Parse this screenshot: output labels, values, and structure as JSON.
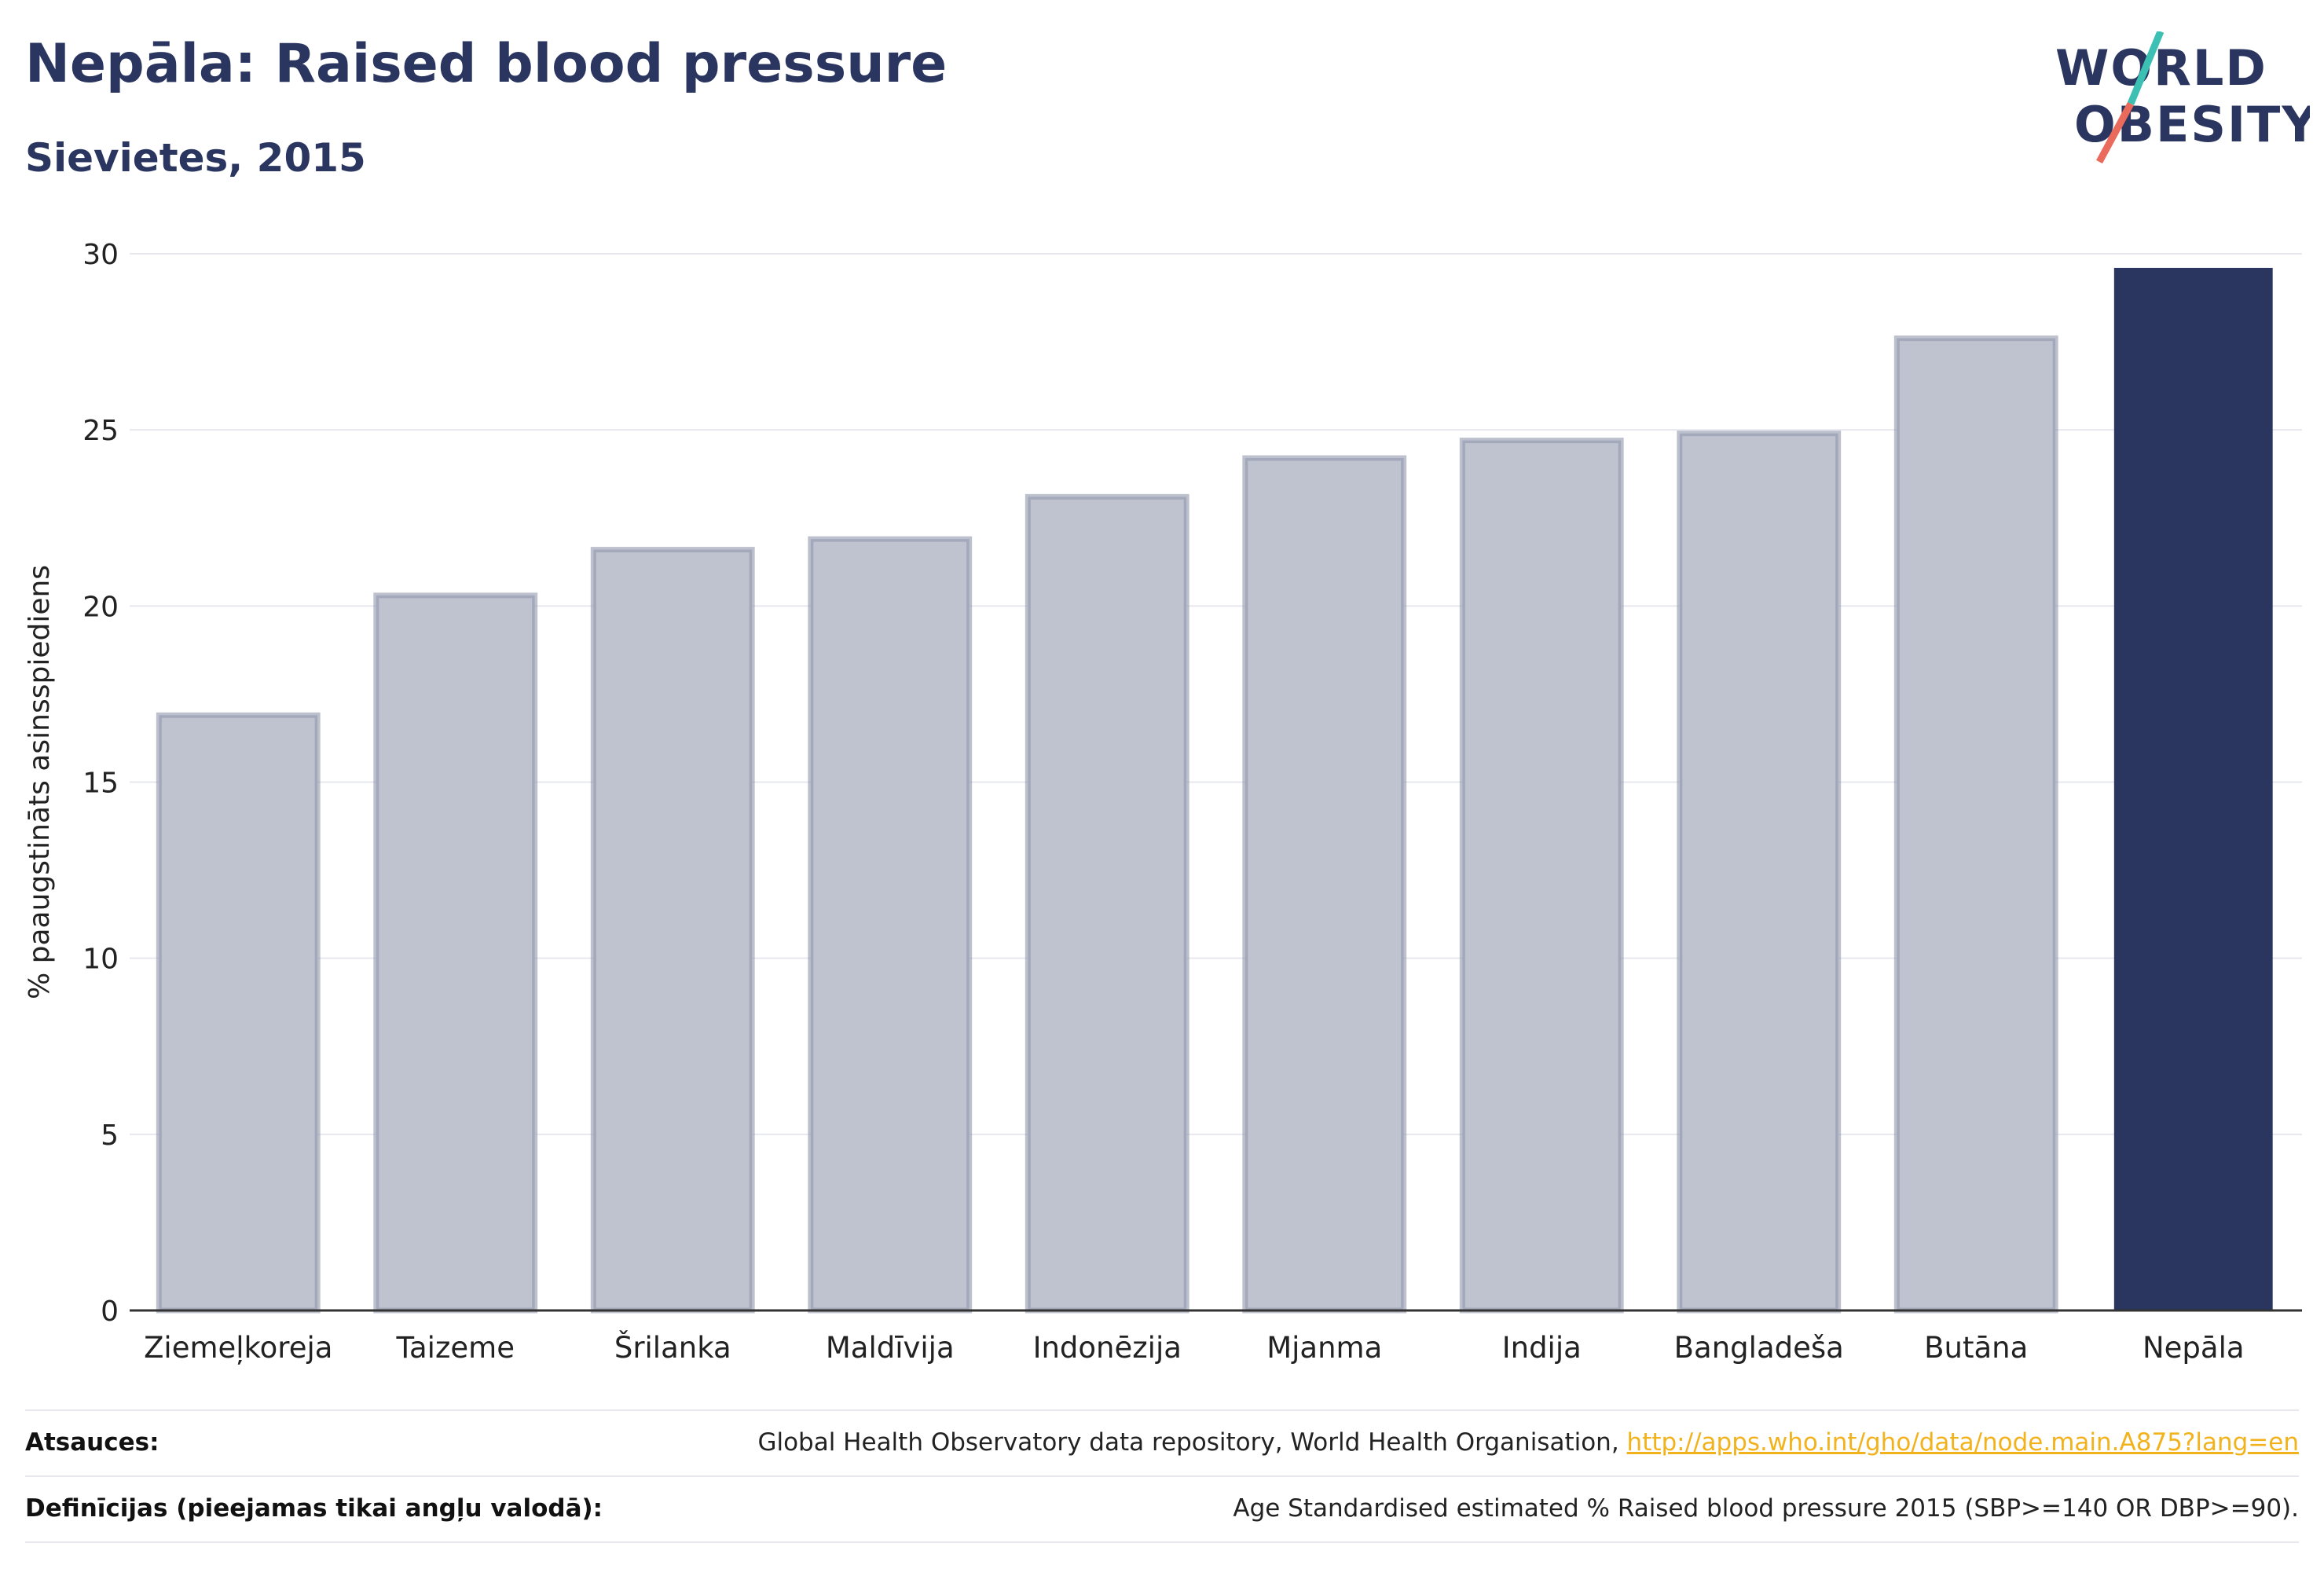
{
  "header": {
    "title": "Nepāla: Raised blood pressure",
    "subtitle": "Sievietes, 2015"
  },
  "logo": {
    "line1": "WORLD",
    "line2": "OBESITY",
    "text_color": "#2a3560",
    "slash_colors": [
      "#3cc0b4",
      "#ea6a5c"
    ]
  },
  "chart_data": {
    "type": "bar",
    "categories": [
      "Ziemeļkoreja",
      "Taizeme",
      "Šrilanka",
      "Maldīvija",
      "Indonēzija",
      "Mjanma",
      "Indija",
      "Bangladeša",
      "Butāna",
      "Nepāla"
    ],
    "values": [
      16.9,
      20.3,
      21.6,
      21.9,
      23.1,
      24.2,
      24.7,
      24.9,
      27.6,
      29.6
    ],
    "highlight": "Nepāla",
    "ylabel": "% paaugstināts asinsspiediens",
    "xlabel": "",
    "ylim": [
      0,
      30
    ],
    "yticks": [
      0,
      5,
      10,
      15,
      20,
      25,
      30
    ],
    "grid": true,
    "colors": {
      "bar_fill": "#bfc2cf",
      "bar_stroke": "#9197ad",
      "highlight_fill": "#2a3560",
      "grid": "#e6e8ee",
      "axis": "#333333",
      "text": "#222222"
    }
  },
  "footer": {
    "sources_label": "Atsauces:",
    "sources_text": "Global Health Observatory data repository, World Health Organisation, ",
    "sources_link": "http://apps.who.int/gho/data/node.main.A875?lang=en",
    "definitions_label": "Definīcijas (pieejamas tikai angļu valodā):",
    "definitions_text": "Age Standardised estimated % Raised blood pressure 2015 (SBP>=140 OR DBP>=90)."
  }
}
